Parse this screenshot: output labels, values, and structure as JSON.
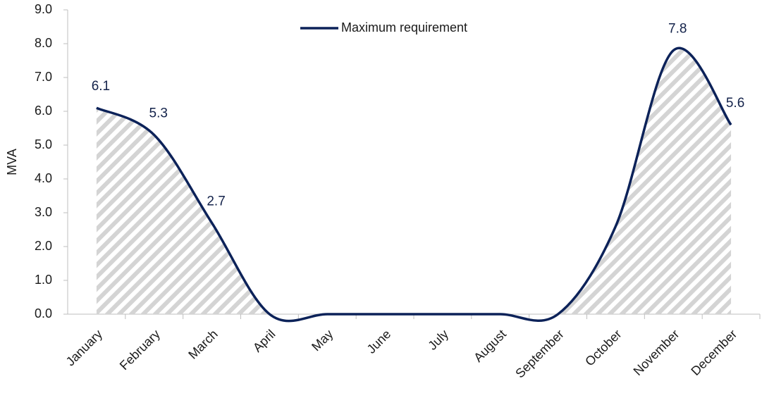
{
  "chart_data": {
    "type": "line",
    "categories": [
      "January",
      "February",
      "March",
      "April",
      "May",
      "June",
      "July",
      "August",
      "September",
      "October",
      "November",
      "December"
    ],
    "series": [
      {
        "name": "Maximum requirement",
        "color": "#0c2259",
        "values": [
          6.1,
          5.3,
          2.7,
          0,
          0,
          0,
          0,
          0,
          0,
          2.6,
          7.8,
          5.6
        ],
        "value_labels": [
          "6.1",
          "5.3",
          "2.7",
          null,
          null,
          null,
          null,
          null,
          null,
          null,
          "7.8",
          "5.6"
        ]
      }
    ],
    "ylabel": "MVA",
    "ylim": [
      0,
      9
    ],
    "yticks": [
      {
        "value": 0,
        "label": "0.0"
      },
      {
        "value": 1,
        "label": "1.0"
      },
      {
        "value": 2,
        "label": "2.0"
      },
      {
        "value": 3,
        "label": "3.0"
      },
      {
        "value": 4,
        "label": "4.0"
      },
      {
        "value": 5,
        "label": "5.0"
      },
      {
        "value": 6,
        "label": "6.0"
      },
      {
        "value": 7,
        "label": "7.0"
      },
      {
        "value": 8,
        "label": "8.0"
      },
      {
        "value": 9,
        "label": "9.0"
      }
    ],
    "smooth": true,
    "legend": "top"
  }
}
